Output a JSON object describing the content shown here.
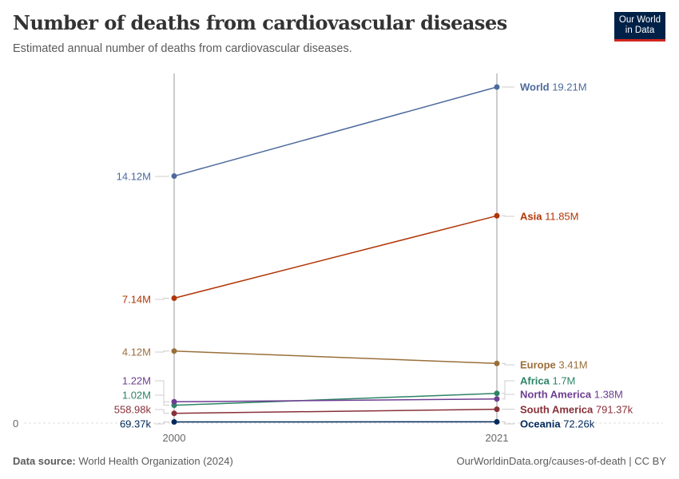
{
  "header": {
    "title": "Number of deaths from cardiovascular diseases",
    "subtitle": "Estimated annual number of deaths from cardiovascular diseases.",
    "logo": "Our World in Data"
  },
  "footer": {
    "source_label": "Data source:",
    "source": "World Health Organization (2024)",
    "link": "OurWorldinData.org/causes-of-death | CC BY"
  },
  "chart_data": {
    "type": "line",
    "title": "Number of deaths from cardiovascular diseases",
    "x": [
      2000,
      2021
    ],
    "x_tick_labels": [
      "2000",
      "2021"
    ],
    "y_tick_labels": [
      "0"
    ],
    "ylim": [
      0,
      19.21
    ],
    "y_unit": "millions",
    "series": [
      {
        "name": "World",
        "color": "#4c6a9c",
        "values": [
          14.12,
          19.21
        ],
        "labels": [
          "14.12M",
          "19.21M"
        ]
      },
      {
        "name": "Asia",
        "color": "#b13507",
        "values": [
          7.14,
          11.85
        ],
        "labels": [
          "7.14M",
          "11.85M"
        ]
      },
      {
        "name": "Europe",
        "color": "#9a6f3a",
        "values": [
          4.12,
          3.41
        ],
        "labels": [
          "4.12M",
          "3.41M"
        ]
      },
      {
        "name": "Africa",
        "color": "#2c8465",
        "values": [
          1.02,
          1.7
        ],
        "labels": [
          "1.02M",
          "1.7M"
        ]
      },
      {
        "name": "North America",
        "color": "#6d3e91",
        "values": [
          1.22,
          1.38
        ],
        "labels": [
          "1.22M",
          "1.38M"
        ]
      },
      {
        "name": "South America",
        "color": "#883039",
        "values": [
          0.55898,
          0.79137
        ],
        "labels": [
          "558.98k",
          "791.37k"
        ]
      },
      {
        "name": "Oceania",
        "color": "#00295b",
        "values": [
          0.06937,
          0.07226
        ],
        "labels": [
          "69.37k",
          "72.26k"
        ]
      }
    ]
  }
}
